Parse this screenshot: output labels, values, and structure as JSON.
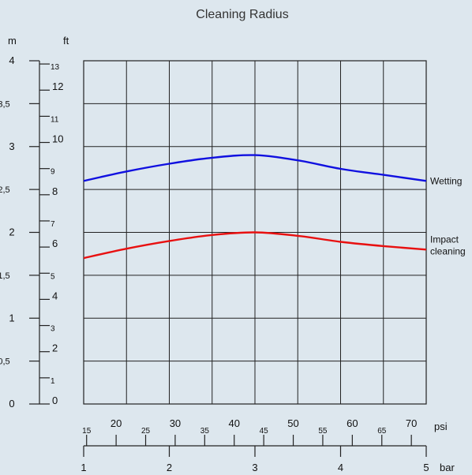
{
  "chart_data": {
    "type": "line",
    "title": "Cleaning Radius",
    "left_axis": {
      "unit_m": "m",
      "unit_ft": "ft",
      "m_ticks": [
        "0",
        "0,5",
        "1",
        "1,5",
        "2",
        "2,5",
        "3",
        "3,5",
        "4"
      ],
      "m_values": [
        0,
        0.5,
        1,
        1.5,
        2,
        2.5,
        3,
        3.5,
        4
      ],
      "ft_ticks": [
        "0",
        "1",
        "2",
        "3",
        "4",
        "5",
        "6",
        "7",
        "8",
        "9",
        "10",
        "11",
        "12",
        "13"
      ],
      "ft_values": [
        0,
        1,
        2,
        3,
        4,
        5,
        6,
        7,
        8,
        9,
        10,
        11,
        12,
        13
      ],
      "ylim": [
        0,
        4
      ]
    },
    "bottom_axis": {
      "unit_psi": "psi",
      "unit_bar": "bar",
      "psi_ticks": [
        "15",
        "20",
        "25",
        "30",
        "35",
        "40",
        "45",
        "50",
        "55",
        "60",
        "65",
        "70"
      ],
      "psi_values": [
        15,
        20,
        25,
        30,
        35,
        40,
        45,
        50,
        55,
        60,
        65,
        70
      ],
      "bar_ticks": [
        "1",
        "2",
        "3",
        "4",
        "5"
      ],
      "bar_values": [
        1,
        2,
        3,
        4,
        5
      ],
      "xlim": [
        1,
        5
      ]
    },
    "grid": true,
    "series": [
      {
        "name": "Wetting",
        "color": "#1010e0",
        "x": [
          1,
          1.5,
          2,
          2.5,
          3,
          3.5,
          4,
          4.5,
          5
        ],
        "y": [
          2.6,
          2.71,
          2.8,
          2.87,
          2.9,
          2.84,
          2.74,
          2.67,
          2.6
        ]
      },
      {
        "name": "Impact cleaning",
        "name_lines": [
          "Impact",
          "cleaning"
        ],
        "color": "#e81010",
        "x": [
          1,
          1.5,
          2,
          2.5,
          3,
          3.5,
          4,
          4.5,
          5
        ],
        "y": [
          1.7,
          1.81,
          1.9,
          1.97,
          2.0,
          1.96,
          1.89,
          1.84,
          1.8
        ]
      }
    ]
  }
}
